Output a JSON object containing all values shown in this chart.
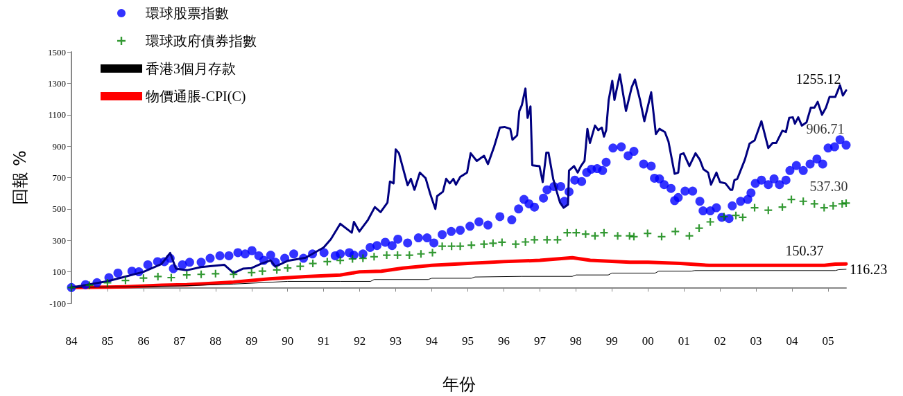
{
  "chart_data": {
    "type": "line",
    "xlabel": "年份",
    "ylabel": "回報 %",
    "xlim": [
      1984,
      2005.5
    ],
    "xticks": [
      {
        "value": 1984,
        "label": "84"
      },
      {
        "value": 1985,
        "label": "85"
      },
      {
        "value": 1986,
        "label": "86"
      },
      {
        "value": 1987,
        "label": "87"
      },
      {
        "value": 1988,
        "label": "88"
      },
      {
        "value": 1989,
        "label": "89"
      },
      {
        "value": 1990,
        "label": "90"
      },
      {
        "value": 1991,
        "label": "91"
      },
      {
        "value": 1992,
        "label": "92"
      },
      {
        "value": 1993,
        "label": "93"
      },
      {
        "value": 1994,
        "label": "94"
      },
      {
        "value": 1995,
        "label": "95"
      },
      {
        "value": 1996,
        "label": "96"
      },
      {
        "value": 1997,
        "label": "97"
      },
      {
        "value": 1998,
        "label": "98"
      },
      {
        "value": 1999,
        "label": "99"
      },
      {
        "value": 2000,
        "label": "00"
      },
      {
        "value": 2001,
        "label": "01"
      },
      {
        "value": 2002,
        "label": "02"
      },
      {
        "value": 2003,
        "label": "03"
      },
      {
        "value": 2004,
        "label": "04"
      },
      {
        "value": 2005,
        "label": "05"
      }
    ],
    "ylim": [
      -100,
      1500
    ],
    "yticks": [
      -100,
      100,
      300,
      500,
      700,
      900,
      1100,
      1300,
      1500
    ],
    "grid": false,
    "legend": "top left",
    "series": [
      {
        "color": "#000080",
        "marker": "none",
        "value_labels": [
          null,
          null,
          null,
          null,
          null,
          null,
          null,
          null,
          null,
          null,
          null,
          null,
          null,
          null,
          null,
          null,
          null,
          null,
          null,
          null,
          null,
          null,
          null,
          null,
          null,
          null,
          null,
          null,
          null,
          null,
          null,
          null,
          null,
          null,
          null,
          null,
          null,
          null,
          null,
          null,
          null,
          null,
          null,
          null,
          null,
          null,
          null,
          null,
          null,
          null,
          null,
          null,
          null,
          null,
          null,
          null,
          null,
          null,
          null,
          null,
          null,
          null,
          null,
          null,
          null,
          null,
          null,
          null,
          null,
          null,
          null,
          null,
          null,
          null,
          null,
          null,
          null,
          null,
          null,
          null,
          null,
          null,
          null,
          null,
          null,
          null,
          null,
          null,
          null,
          null,
          null,
          null,
          null,
          null,
          null,
          null,
          null,
          null,
          null,
          null,
          null,
          null,
          null,
          null,
          null,
          null,
          null,
          null,
          null,
          null,
          null,
          null,
          null,
          null,
          null,
          null,
          null,
          null,
          null,
          null,
          null,
          null,
          null,
          null,
          null,
          null,
          null,
          null,
          null,
          null,
          null,
          null,
          null,
          null,
          null,
          null,
          null,
          null,
          null,
          null,
          "1255.12"
        ],
        "x": [
          1984,
          1984.5,
          1985,
          1985.5,
          1986,
          1986.5,
          1986.74,
          1986.9,
          1987.2,
          1987.6,
          1988.24,
          1988.5,
          1988.76,
          1989,
          1989.28,
          1989.53,
          1989.66,
          1990,
          1990.5,
          1991,
          1991.2,
          1991.46,
          1991.78,
          1991.84,
          1991.99,
          1992.23,
          1992.42,
          1992.58,
          1992.77,
          1992.84,
          1992.94,
          1993,
          1993.09,
          1993.33,
          1993.42,
          1993.52,
          1993.67,
          1993.83,
          1993.96,
          1994.1,
          1994.15,
          1994.31,
          1994.4,
          1994.5,
          1994.6,
          1994.67,
          1994.79,
          1994.98,
          1995.08,
          1995.25,
          1995.45,
          1995.56,
          1995.73,
          1995.89,
          1996.02,
          1996.18,
          1996.24,
          1996.37,
          1996.43,
          1996.5,
          1996.6,
          1996.66,
          1996.74,
          1996.79,
          1996.99,
          1997.08,
          1997.18,
          1997.24,
          1997.37,
          1997.47,
          1997.56,
          1997.66,
          1997.78,
          1997.81,
          1997.95,
          1998.05,
          1998.14,
          1998.24,
          1998.32,
          1998.39,
          1998.53,
          1998.62,
          1998.72,
          1998.78,
          1998.84,
          1998.91,
          1999.01,
          1999.07,
          1999.22,
          1999.39,
          1999.55,
          1999.64,
          1999.78,
          1999.9,
          2000.09,
          2000.22,
          2000.32,
          2000.47,
          2000.57,
          2000.74,
          2000.84,
          2000.9,
          2000.99,
          2001.15,
          2001.32,
          2001.44,
          2001.54,
          2001.67,
          2001.75,
          2001.9,
          2002,
          2002.15,
          2002.29,
          2002.34,
          2002.4,
          2002.48,
          2002.69,
          2002.82,
          2002.96,
          2003.15,
          2003.34,
          2003.46,
          2003.56,
          2003.73,
          2003.83,
          2003.92,
          2004.02,
          2004.08,
          2004.17,
          2004.27,
          2004.4,
          2004.52,
          2004.62,
          2004.71,
          2004.83,
          2004.94,
          2005.04,
          2005.2,
          2005.33,
          2005.41,
          2005.5
        ],
        "values": [
          0,
          20,
          40,
          70,
          100,
          150,
          220,
          120,
          110,
          130,
          145,
          92,
          120,
          124,
          153,
          173,
          133,
          170,
          190,
          255,
          308,
          406,
          349,
          418,
          357,
          431,
          512,
          480,
          541,
          675,
          663,
          880,
          855,
          651,
          692,
          622,
          732,
          696,
          594,
          500,
          582,
          610,
          692,
          663,
          692,
          655,
          704,
          732,
          855,
          806,
          839,
          786,
          896,
          1018,
          1022,
          1010,
          941,
          969,
          1124,
          1161,
          1267,
          1080,
          1153,
          778,
          773,
          671,
          859,
          859,
          692,
          610,
          541,
          508,
          528,
          745,
          773,
          732,
          773,
          806,
          1010,
          920,
          1031,
          1002,
          1018,
          961,
          1002,
          1194,
          1316,
          1194,
          1357,
          1124,
          1276,
          1324,
          1194,
          1059,
          1243,
          977,
          1010,
          990,
          929,
          724,
          732,
          847,
          855,
          773,
          855,
          814,
          753,
          732,
          655,
          732,
          671,
          663,
          622,
          622,
          684,
          692,
          814,
          916,
          937,
          1059,
          888,
          920,
          920,
          998,
          990,
          1080,
          1084,
          1043,
          1084,
          1031,
          1051,
          1145,
          1145,
          1182,
          1100,
          1145,
          1214,
          1214,
          1288,
          1222,
          1255.12
        ]
      },
      {
        "type": "scatter",
        "name": "環球股票指數",
        "color": "#0000ff",
        "marker": "circle",
        "value_labels": [
          null,
          null,
          null,
          null,
          null,
          null,
          null,
          null,
          null,
          null,
          null,
          null,
          null,
          null,
          null,
          null,
          null,
          null,
          null,
          null,
          null,
          null,
          null,
          null,
          null,
          null,
          null,
          null,
          null,
          null,
          null,
          null,
          null,
          null,
          null,
          null,
          null,
          null,
          null,
          null,
          null,
          null,
          null,
          null,
          null,
          null,
          null,
          null,
          null,
          null,
          null,
          null,
          null,
          null,
          null,
          null,
          null,
          null,
          null,
          null,
          null,
          null,
          null,
          null,
          null,
          null,
          null,
          null,
          null,
          null,
          null,
          null,
          null,
          null,
          null,
          null,
          null,
          null,
          null,
          null,
          null,
          null,
          null,
          null,
          null,
          null,
          null,
          null,
          null,
          null,
          null,
          null,
          null,
          null,
          null,
          null,
          null,
          null,
          null,
          null,
          null,
          null,
          null,
          null,
          null,
          null,
          null,
          null,
          "906.71"
        ],
        "x": [
          1984,
          1984.39,
          1984.71,
          1985.04,
          1985.29,
          1985.68,
          1985.87,
          1986.12,
          1986.39,
          1986.58,
          1986.74,
          1986.83,
          1987.08,
          1987.28,
          1987.6,
          1987.85,
          1988.12,
          1988.37,
          1988.62,
          1988.82,
          1989.01,
          1989.2,
          1989.34,
          1989.53,
          1989.66,
          1989.92,
          1990.17,
          1990.44,
          1990.69,
          1991.01,
          1991.32,
          1991.46,
          1991.71,
          1991.84,
          1992.09,
          1992.29,
          1992.48,
          1992.71,
          1992.9,
          1993.06,
          1993.33,
          1993.63,
          1993.87,
          1994.06,
          1994.29,
          1994.54,
          1994.79,
          1995.06,
          1995.31,
          1995.56,
          1995.89,
          1996.22,
          1996.41,
          1996.56,
          1996.7,
          1996.85,
          1997.1,
          1997.2,
          1997.39,
          1997.58,
          1997.68,
          1997.81,
          1997.97,
          1998.16,
          1998.3,
          1998.43,
          1998.59,
          1998.74,
          1998.84,
          1999.03,
          1999.26,
          1999.45,
          1999.61,
          1999.88,
          2000.09,
          2000.18,
          2000.32,
          2000.45,
          2000.64,
          2000.74,
          2000.84,
          2001.03,
          2001.24,
          2001.44,
          2001.53,
          2001.73,
          2001.9,
          2002.05,
          2002.25,
          2002.34,
          2002.57,
          2002.77,
          2002.86,
          2002.98,
          2003.15,
          2003.34,
          2003.5,
          2003.65,
          2003.83,
          2003.94,
          2004.12,
          2004.31,
          2004.5,
          2004.69,
          2004.85,
          2005,
          2005.18,
          2005.33,
          2005.5
        ],
        "values": [
          0,
          18,
          31,
          63,
          92,
          104,
          100,
          145,
          165,
          165,
          186,
          120,
          145,
          161,
          161,
          186,
          202,
          202,
          222,
          214,
          235,
          202,
          173,
          206,
          161,
          186,
          214,
          186,
          214,
          222,
          202,
          214,
          222,
          206,
          214,
          255,
          267,
          288,
          267,
          308,
          284,
          316,
          316,
          284,
          337,
          357,
          365,
          390,
          418,
          398,
          451,
          431,
          500,
          561,
          533,
          512,
          569,
          622,
          643,
          643,
          549,
          610,
          684,
          675,
          732,
          753,
          757,
          745,
          798,
          888,
          896,
          839,
          867,
          786,
          773,
          696,
          692,
          655,
          631,
          553,
          573,
          614,
          614,
          549,
          488,
          488,
          508,
          447,
          439,
          520,
          549,
          561,
          602,
          663,
          684,
          655,
          692,
          655,
          684,
          745,
          777,
          745,
          786,
          818,
          786,
          888,
          896,
          941,
          906.71
        ]
      },
      {
        "type": "scatter",
        "name": "環球政府債券指數",
        "color": "#008000",
        "marker": "cross",
        "value_labels": [
          null,
          null,
          null,
          null,
          null,
          null,
          null,
          null,
          null,
          null,
          null,
          null,
          null,
          null,
          null,
          null,
          null,
          null,
          null,
          null,
          null,
          null,
          null,
          null,
          null,
          null,
          null,
          null,
          null,
          null,
          null,
          null,
          null,
          null,
          null,
          null,
          null,
          null,
          null,
          null,
          null,
          null,
          null,
          null,
          null,
          null,
          null,
          null,
          null,
          null,
          null,
          null,
          null,
          null,
          null,
          null,
          null,
          null,
          null,
          null,
          null,
          null,
          null,
          null,
          null,
          "537.30"
        ],
        "x": [
          1984,
          1984.5,
          1985,
          1985.5,
          1986,
          1986.4,
          1986.77,
          1987.2,
          1987.6,
          1988,
          1988.5,
          1989,
          1989.3,
          1989.7,
          1990,
          1990.35,
          1990.7,
          1991.1,
          1991.46,
          1991.8,
          1992.09,
          1992.4,
          1992.75,
          1993.05,
          1993.38,
          1993.7,
          1994.02,
          1994.29,
          1994.55,
          1994.79,
          1995.1,
          1995.45,
          1995.7,
          1995.95,
          1996.33,
          1996.6,
          1996.85,
          1997.2,
          1997.49,
          1997.76,
          1998.01,
          1998.27,
          1998.53,
          1998.78,
          1999.16,
          1999.49,
          1999.61,
          1999.99,
          2000.38,
          2000.76,
          2001.15,
          2001.42,
          2001.73,
          2002.11,
          2002.44,
          2002.63,
          2002.96,
          2003.34,
          2003.73,
          2003.98,
          2004.31,
          2004.62,
          2004.89,
          2005.14,
          2005.39,
          2005.5
        ],
        "values": [
          0,
          15,
          30,
          45,
          60,
          70,
          63,
          80,
          84,
          88,
          84,
          95,
          104,
          112,
          124,
          135,
          153,
          165,
          173,
          182,
          186,
          196,
          206,
          206,
          206,
          214,
          222,
          263,
          263,
          263,
          270,
          276,
          282,
          288,
          276,
          290,
          304,
          304,
          304,
          349,
          349,
          340,
          329,
          349,
          329,
          329,
          324,
          345,
          324,
          357,
          329,
          378,
          418,
          451,
          459,
          447,
          508,
          492,
          512,
          561,
          549,
          533,
          508,
          520,
          533,
          537.3
        ]
      },
      {
        "name": "香港3個月存款",
        "color": "#000000",
        "marker": "none",
        "value_labels": [
          null,
          null,
          null,
          null,
          null,
          null,
          null,
          null,
          null,
          null,
          null,
          null,
          null,
          null,
          null,
          null,
          null,
          null,
          null,
          null,
          null,
          null,
          null,
          null,
          "116.23"
        ],
        "x": [
          1984,
          1985,
          1986,
          1987,
          1988.5,
          1990,
          1991.46,
          1992.3,
          1992.4,
          1993.9,
          1994,
          1995.1,
          1995.2,
          1996.5,
          1997.9,
          1998,
          1998.9,
          1999,
          2000.2,
          2000.3,
          2001.2,
          2001.3,
          2005.2,
          2005.3,
          2005.5
        ],
        "values": [
          0,
          3,
          6,
          10,
          22,
          39,
          39,
          39,
          51,
          51,
          59,
          59,
          67,
          71,
          71,
          80,
          80,
          92,
          92,
          104,
          104,
          108,
          108,
          114,
          116.23
        ]
      },
      {
        "name": "物價通脹-CPI(C)",
        "color": "#ff0000",
        "marker": "none",
        "value_labels": [
          null,
          null,
          null,
          null,
          null,
          null,
          null,
          null,
          null,
          null,
          null,
          null,
          null,
          null,
          null,
          null,
          null,
          null,
          null,
          null,
          null,
          null,
          null,
          null,
          "150.37"
        ],
        "x": [
          1984,
          1985,
          1985.5,
          1986.5,
          1987.2,
          1988.5,
          1989.5,
          1990.5,
          1991.46,
          1992,
          1992.6,
          1993.2,
          1994,
          1995,
          1996,
          1997,
          1997.9,
          1998.4,
          1999.5,
          2000,
          2000.9,
          2001.7,
          2004.9,
          2005.2,
          2005.5
        ],
        "values": [
          0,
          2,
          5,
          15,
          18,
          35,
          55,
          70,
          80,
          100,
          104,
          124,
          141,
          153,
          165,
          173,
          190,
          173,
          161,
          161,
          153,
          141,
          141,
          149,
          150.37
        ]
      }
    ]
  }
}
